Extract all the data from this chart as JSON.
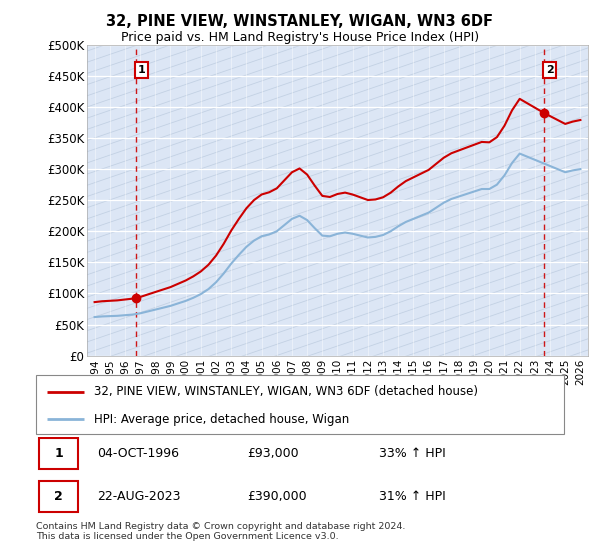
{
  "title": "32, PINE VIEW, WINSTANLEY, WIGAN, WN3 6DF",
  "subtitle": "Price paid vs. HM Land Registry's House Price Index (HPI)",
  "ylabel_ticks": [
    "£0",
    "£50K",
    "£100K",
    "£150K",
    "£200K",
    "£250K",
    "£300K",
    "£350K",
    "£400K",
    "£450K",
    "£500K"
  ],
  "ytick_values": [
    0,
    50000,
    100000,
    150000,
    200000,
    250000,
    300000,
    350000,
    400000,
    450000,
    500000
  ],
  "ylim": [
    0,
    500000
  ],
  "xlim_start": 1993.5,
  "xlim_end": 2026.5,
  "hpi_color": "#8ab4d8",
  "price_color": "#cc0000",
  "point1_x": 1996.75,
  "point1_y": 93000,
  "point1_label": "1",
  "point2_x": 2023.63,
  "point2_y": 390000,
  "point2_label": "2",
  "legend_line1": "32, PINE VIEW, WINSTANLEY, WIGAN, WN3 6DF (detached house)",
  "legend_line2": "HPI: Average price, detached house, Wigan",
  "table_row1": [
    "1",
    "04-OCT-1996",
    "£93,000",
    "33% ↑ HPI"
  ],
  "table_row2": [
    "2",
    "22-AUG-2023",
    "£390,000",
    "31% ↑ HPI"
  ],
  "footer": "Contains HM Land Registry data © Crown copyright and database right 2024.\nThis data is licensed under the Open Government Licence v3.0.",
  "plot_bg_color": "#dce6f5",
  "grid_color": "#c0cce0",
  "hatch_region_end": 1996.5,
  "hpi_years": [
    1994,
    1994.5,
    1995,
    1995.5,
    1996,
    1996.5,
    1997,
    1997.5,
    1998,
    1998.5,
    1999,
    1999.5,
    2000,
    2000.5,
    2001,
    2001.5,
    2002,
    2002.5,
    2003,
    2003.5,
    2004,
    2004.5,
    2005,
    2005.5,
    2006,
    2006.5,
    2007,
    2007.5,
    2008,
    2008.5,
    2009,
    2009.5,
    2010,
    2010.5,
    2011,
    2011.5,
    2012,
    2012.5,
    2013,
    2013.5,
    2014,
    2014.5,
    2015,
    2015.5,
    2016,
    2016.5,
    2017,
    2017.5,
    2018,
    2018.5,
    2019,
    2019.5,
    2020,
    2020.5,
    2021,
    2021.5,
    2022,
    2022.5,
    2023,
    2023.5,
    2024,
    2024.5,
    2025,
    2025.5,
    2026
  ],
  "hpi_values": [
    62000,
    63000,
    63500,
    64000,
    65000,
    66000,
    68000,
    71000,
    74000,
    77000,
    80000,
    84000,
    88000,
    93000,
    99000,
    107000,
    118000,
    132000,
    148000,
    162000,
    175000,
    185000,
    192000,
    195000,
    200000,
    210000,
    220000,
    225000,
    218000,
    205000,
    193000,
    192000,
    196000,
    198000,
    196000,
    193000,
    190000,
    191000,
    194000,
    200000,
    208000,
    215000,
    220000,
    225000,
    230000,
    238000,
    246000,
    252000,
    256000,
    260000,
    264000,
    268000,
    268000,
    275000,
    290000,
    310000,
    325000,
    320000,
    315000,
    310000,
    305000,
    300000,
    295000,
    298000,
    300000
  ]
}
